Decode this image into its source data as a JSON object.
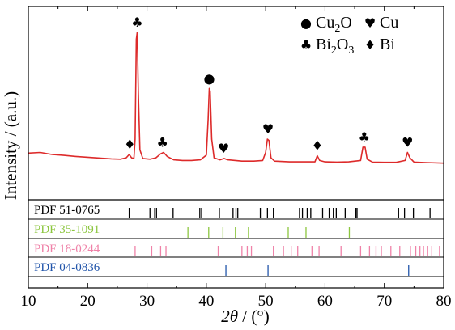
{
  "chart_data": {
    "type": "line",
    "xlabel_theta": "2θ",
    "xlabel_rest": " / (°)",
    "ylabel": "Intensity / (a.u.)",
    "xlim": [
      10,
      80
    ],
    "xticks": [
      10,
      20,
      30,
      40,
      50,
      60,
      70,
      80
    ],
    "xtick_labels": [
      "10",
      "20",
      "30",
      "40",
      "50",
      "60",
      "70",
      "80"
    ],
    "pattern_color": "#dd2a2a",
    "pattern": [
      [
        10,
        0.095
      ],
      [
        12,
        0.1
      ],
      [
        14,
        0.085
      ],
      [
        16,
        0.078
      ],
      [
        18,
        0.07
      ],
      [
        20,
        0.064
      ],
      [
        22,
        0.058
      ],
      [
        24,
        0.052
      ],
      [
        25.5,
        0.05
      ],
      [
        26.5,
        0.06
      ],
      [
        27.0,
        0.085
      ],
      [
        27.4,
        0.06
      ],
      [
        27.8,
        0.055
      ],
      [
        28.0,
        0.2
      ],
      [
        28.2,
        0.95
      ],
      [
        28.35,
        1.0
      ],
      [
        28.55,
        0.55
      ],
      [
        28.8,
        0.12
      ],
      [
        29.3,
        0.055
      ],
      [
        30.5,
        0.05
      ],
      [
        31.5,
        0.06
      ],
      [
        32.3,
        0.09
      ],
      [
        32.8,
        0.1
      ],
      [
        33.4,
        0.07
      ],
      [
        34.5,
        0.045
      ],
      [
        36,
        0.04
      ],
      [
        37.5,
        0.04
      ],
      [
        39,
        0.045
      ],
      [
        40.0,
        0.08
      ],
      [
        40.3,
        0.35
      ],
      [
        40.5,
        0.58
      ],
      [
        40.65,
        0.56
      ],
      [
        40.9,
        0.2
      ],
      [
        41.3,
        0.06
      ],
      [
        42.3,
        0.045
      ],
      [
        43.0,
        0.055
      ],
      [
        43.6,
        0.045
      ],
      [
        46,
        0.035
      ],
      [
        48,
        0.035
      ],
      [
        49.5,
        0.04
      ],
      [
        50.0,
        0.1
      ],
      [
        50.3,
        0.2
      ],
      [
        50.55,
        0.19
      ],
      [
        50.9,
        0.06
      ],
      [
        51.5,
        0.035
      ],
      [
        54,
        0.03
      ],
      [
        56,
        0.03
      ],
      [
        58.3,
        0.03
      ],
      [
        58.7,
        0.075
      ],
      [
        59.1,
        0.04
      ],
      [
        60,
        0.03
      ],
      [
        62,
        0.028
      ],
      [
        64,
        0.03
      ],
      [
        66.0,
        0.04
      ],
      [
        66.4,
        0.14
      ],
      [
        66.75,
        0.14
      ],
      [
        67.1,
        0.05
      ],
      [
        68,
        0.028
      ],
      [
        70,
        0.026
      ],
      [
        72,
        0.026
      ],
      [
        73.5,
        0.04
      ],
      [
        73.9,
        0.1
      ],
      [
        74.3,
        0.06
      ],
      [
        75,
        0.028
      ],
      [
        77,
        0.024
      ],
      [
        80,
        0.02
      ]
    ],
    "peak_markers": [
      {
        "x": 27.1,
        "y": 0.085,
        "symbol": "♦"
      },
      {
        "x": 28.35,
        "y": 1.0,
        "symbol": "♣"
      },
      {
        "x": 32.6,
        "y": 0.1,
        "symbol": "♣"
      },
      {
        "x": 40.5,
        "y": 0.58,
        "symbol": "●"
      },
      {
        "x": 42.9,
        "y": 0.055,
        "symbol": "♥"
      },
      {
        "x": 50.4,
        "y": 0.2,
        "symbol": "♥"
      },
      {
        "x": 58.7,
        "y": 0.075,
        "symbol": "♦"
      },
      {
        "x": 66.6,
        "y": 0.14,
        "symbol": "♣"
      },
      {
        "x": 73.9,
        "y": 0.1,
        "symbol": "♥"
      }
    ],
    "legend": [
      {
        "symbol": "●",
        "text": "Cu",
        "sub": "2",
        "text2": "O",
        "row": 0,
        "col": 0
      },
      {
        "symbol": "♥",
        "text": "Cu",
        "sub": "",
        "text2": "",
        "row": 0,
        "col": 1
      },
      {
        "symbol": "♣",
        "text": "Bi",
        "sub": "2",
        "text2": "O",
        "sub2": "3",
        "row": 1,
        "col": 0
      },
      {
        "symbol": "♦",
        "text": "Bi",
        "sub": "",
        "text2": "",
        "row": 1,
        "col": 1
      }
    ],
    "references": [
      {
        "label": "PDF 51-0765",
        "color": "#000000",
        "lines": [
          27.0,
          30.5,
          31.3,
          31.6,
          34.4,
          38.9,
          39.2,
          42.2,
          44.5,
          45.0,
          45.3,
          49.1,
          50.3,
          51.3,
          55.7,
          56.2,
          57.0,
          57.6,
          59.6,
          60.7,
          61.4,
          61.9,
          63.4,
          65.2,
          65.4,
          72.4,
          73.4,
          74.9,
          77.7
        ]
      },
      {
        "label": "PDF 35-1091",
        "color": "#8cc63f",
        "lines": [
          36.9,
          40.4,
          42.8,
          44.9,
          47.1,
          53.8,
          56.8,
          64.1
        ]
      },
      {
        "label": "PDF 18-0244",
        "color": "#ef82a8",
        "lines": [
          28.0,
          30.8,
          32.3,
          33.2,
          42.0,
          46.0,
          46.9,
          47.6,
          51.3,
          53.0,
          54.3,
          55.4,
          57.8,
          59.0,
          62.7,
          66.0,
          67.5,
          68.6,
          69.5,
          71.1,
          72.6,
          74.4,
          75.3,
          76.0,
          76.6,
          77.3,
          78.0,
          79.3
        ]
      },
      {
        "label": "PDF 04-0836",
        "color": "#2255aa",
        "lines": [
          43.3,
          50.4,
          74.1
        ]
      }
    ]
  }
}
